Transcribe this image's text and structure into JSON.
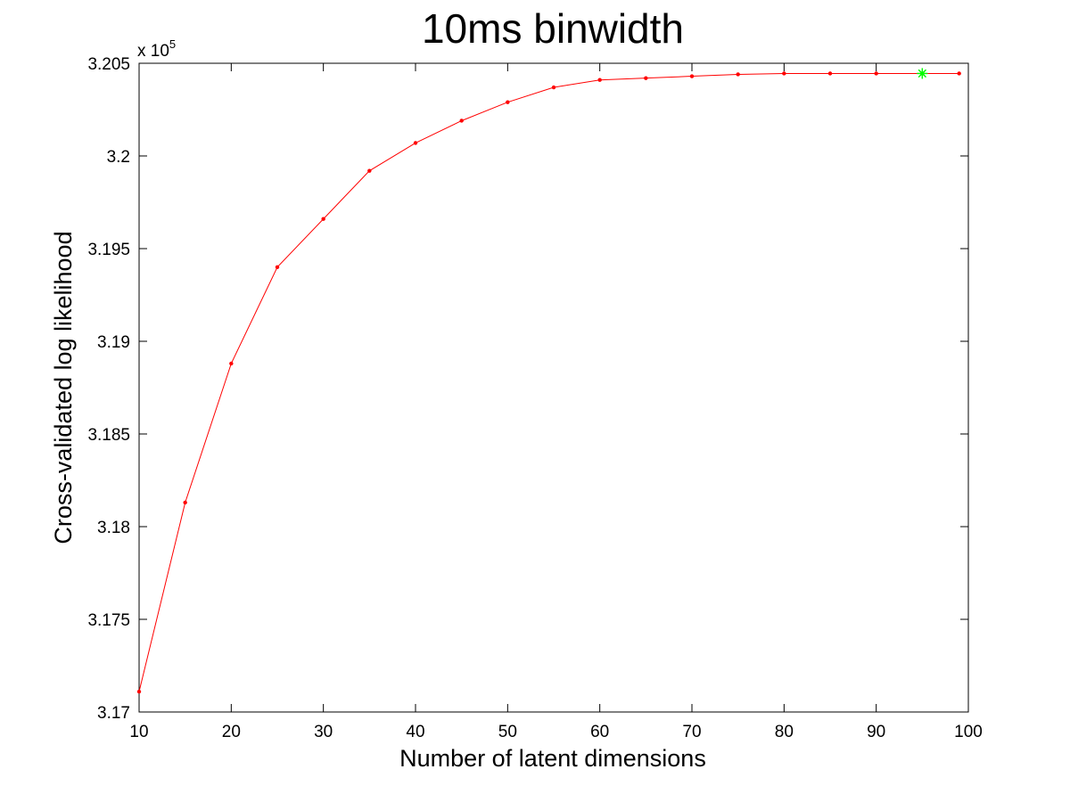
{
  "chart_data": {
    "type": "line",
    "title": "10ms binwidth",
    "xlabel": "Number of latent dimensions",
    "ylabel": "Cross-validated log likelihood",
    "y_multiplier_base": "x 10",
    "y_multiplier_exponent": "5",
    "xlim": [
      10,
      100
    ],
    "ylim": [
      3.17,
      3.205
    ],
    "x_ticks": [
      10,
      20,
      30,
      40,
      50,
      60,
      70,
      80,
      90,
      100
    ],
    "x_tick_labels": [
      "10",
      "20",
      "30",
      "40",
      "50",
      "60",
      "70",
      "80",
      "90",
      "100"
    ],
    "y_ticks": [
      3.17,
      3.175,
      3.18,
      3.185,
      3.19,
      3.195,
      3.2,
      3.205
    ],
    "y_tick_labels": [
      "3.17",
      "3.175",
      "3.18",
      "3.185",
      "3.19",
      "3.195",
      "3.2",
      "3.205"
    ],
    "grid": false,
    "line_color": "#ff0000",
    "highlight_color": "#00ff00",
    "series": [
      {
        "x": [
          10,
          15,
          20,
          25,
          30,
          35,
          40,
          45,
          50,
          55,
          60,
          65,
          70,
          75,
          80,
          85,
          90,
          95,
          99
        ],
        "y": [
          3.1711,
          3.1813,
          3.1888,
          3.194,
          3.1966,
          3.1992,
          3.2007,
          3.2019,
          3.2029,
          3.2037,
          3.2041,
          3.2042,
          3.2043,
          3.2044,
          3.20445,
          3.20445,
          3.20445,
          3.20445,
          3.20445
        ]
      }
    ],
    "highlight_point": {
      "x": 95,
      "y": 3.20445
    }
  }
}
